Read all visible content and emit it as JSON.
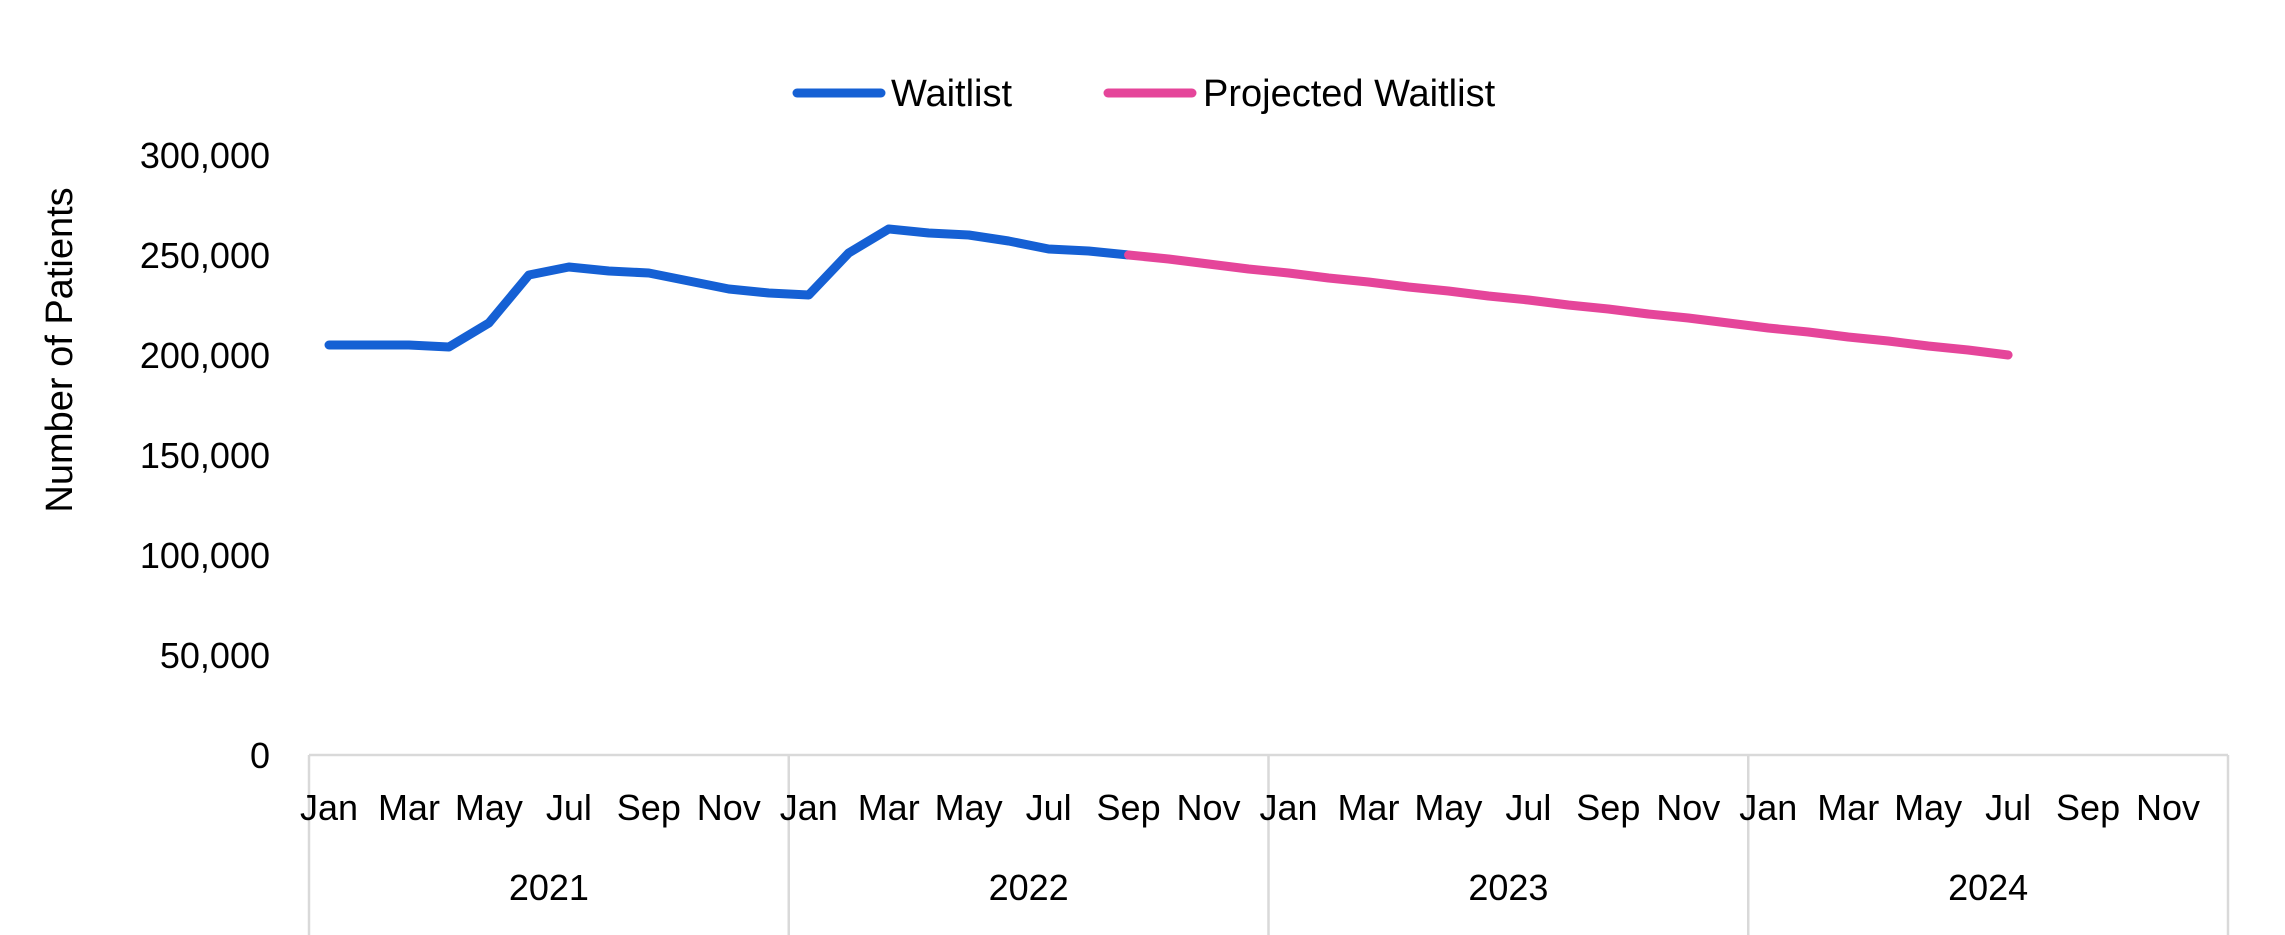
{
  "chart_data": {
    "type": "line",
    "title": "",
    "xlabel": "",
    "ylabel": "Number of Patients",
    "ylim": [
      0,
      300000
    ],
    "yticks": [
      "0",
      "50,000",
      "100,000",
      "150,000",
      "200,000",
      "250,000",
      "300,000"
    ],
    "grid": false,
    "legend_position": "top-center",
    "x_axis": {
      "type": "monthly",
      "years": [
        "2021",
        "2022",
        "2023",
        "2024"
      ],
      "month_labels": [
        "Jan",
        "Mar",
        "May",
        "Jul",
        "Sep",
        "Nov"
      ]
    },
    "series": [
      {
        "name": "Waitlist",
        "color": "#1560D4",
        "x": [
          "2021-01",
          "2021-02",
          "2021-03",
          "2021-04",
          "2021-05",
          "2021-06",
          "2021-07",
          "2021-08",
          "2021-09",
          "2021-10",
          "2021-11",
          "2021-12",
          "2022-01",
          "2022-02",
          "2022-03",
          "2022-04",
          "2022-05",
          "2022-06",
          "2022-07",
          "2022-08",
          "2022-09"
        ],
        "values": [
          205000,
          205000,
          205000,
          204000,
          216000,
          240000,
          244000,
          242000,
          241000,
          237000,
          233000,
          231000,
          230000,
          251000,
          263000,
          261000,
          260000,
          257000,
          253000,
          252000,
          250000
        ]
      },
      {
        "name": "Projected Waitlist",
        "color": "#E5459A",
        "x": [
          "2022-09",
          "2022-10",
          "2022-11",
          "2022-12",
          "2023-01",
          "2023-02",
          "2023-03",
          "2023-04",
          "2023-05",
          "2023-06",
          "2023-07",
          "2023-08",
          "2023-09",
          "2023-10",
          "2023-11",
          "2023-12",
          "2024-01",
          "2024-02",
          "2024-03",
          "2024-04",
          "2024-05",
          "2024-06",
          "2024-07"
        ],
        "values": [
          250000,
          248000,
          245500,
          243000,
          241000,
          238500,
          236500,
          234000,
          232000,
          229500,
          227500,
          225000,
          223000,
          220500,
          218500,
          216000,
          213500,
          211500,
          209000,
          207000,
          204500,
          202500,
          200000
        ]
      }
    ]
  }
}
